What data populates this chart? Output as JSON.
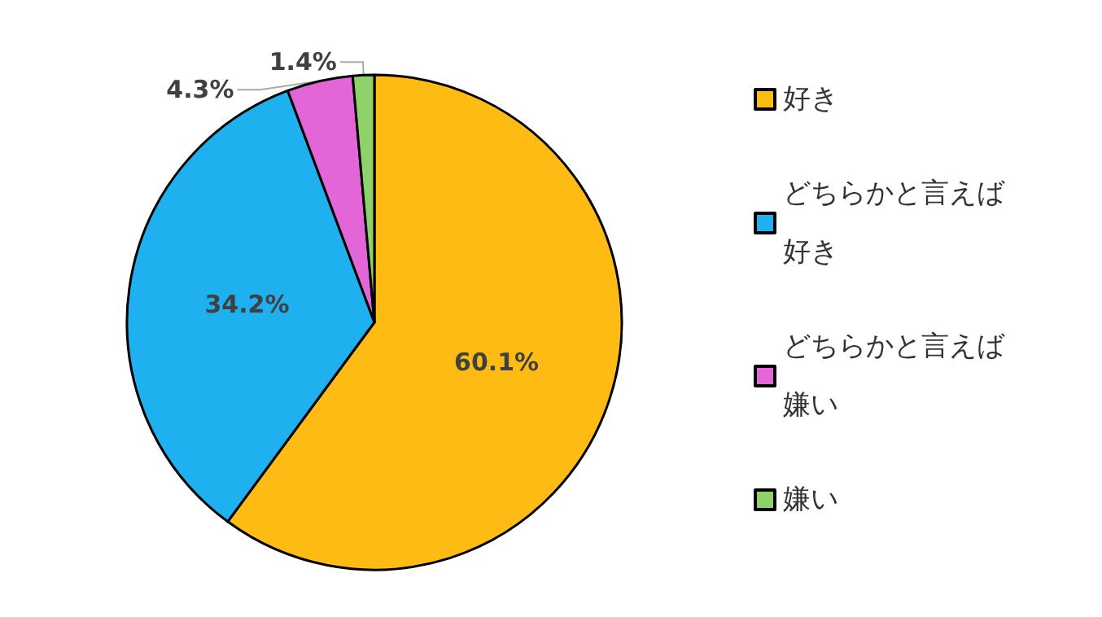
{
  "chart_data": {
    "type": "pie",
    "categories": [
      "好き",
      "どちらかと言えば好き",
      "どちらかと言えば嫌い",
      "嫌い"
    ],
    "values": [
      60.1,
      34.2,
      4.3,
      1.4
    ],
    "colors": [
      "#fdbb14",
      "#1fb0f0",
      "#e366d8",
      "#8fd16a"
    ],
    "value_labels": [
      "60.1%",
      "34.2%",
      "4.3%",
      "1.4%"
    ],
    "legend": "right"
  }
}
